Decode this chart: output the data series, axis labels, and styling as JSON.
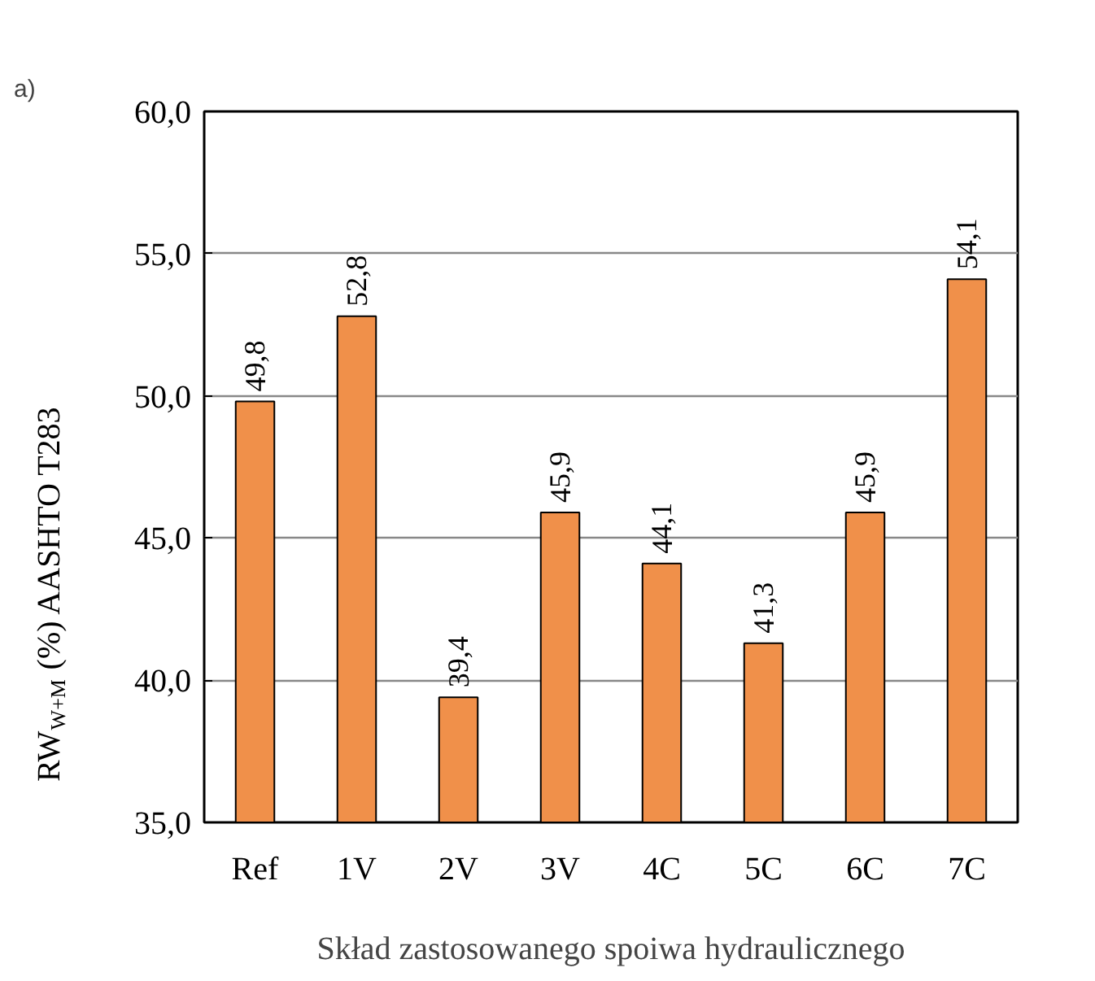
{
  "chart_data": {
    "type": "bar",
    "title": "a)",
    "xlabel": "Skład zastosowanego spoiwa hydraulicznego",
    "ylabel": "RW$_{W+M}$ (%)  AASHTO T283",
    "categories": [
      "Ref",
      "1V",
      "2V",
      "3V",
      "4C",
      "5C",
      "6C",
      "7C"
    ],
    "values": [
      49.8,
      52.8,
      39.4,
      45.9,
      44.1,
      41.3,
      45.9,
      54.1
    ],
    "value_labels": [
      "49,8",
      "52,8",
      "39,4",
      "45,9",
      "44,1",
      "41,3",
      "45,9",
      "54,1"
    ],
    "color": "#f0904a",
    "grid": "y",
    "ylim": [
      35,
      60
    ],
    "yticks": [
      {
        "value": 35,
        "label": "35,0"
      },
      {
        "value": 40,
        "label": "40,0"
      },
      {
        "value": 45,
        "label": "45,0"
      },
      {
        "value": 50,
        "label": "50,0"
      },
      {
        "value": 55,
        "label": "55,0"
      },
      {
        "value": 60,
        "label": "60,0"
      }
    ]
  }
}
